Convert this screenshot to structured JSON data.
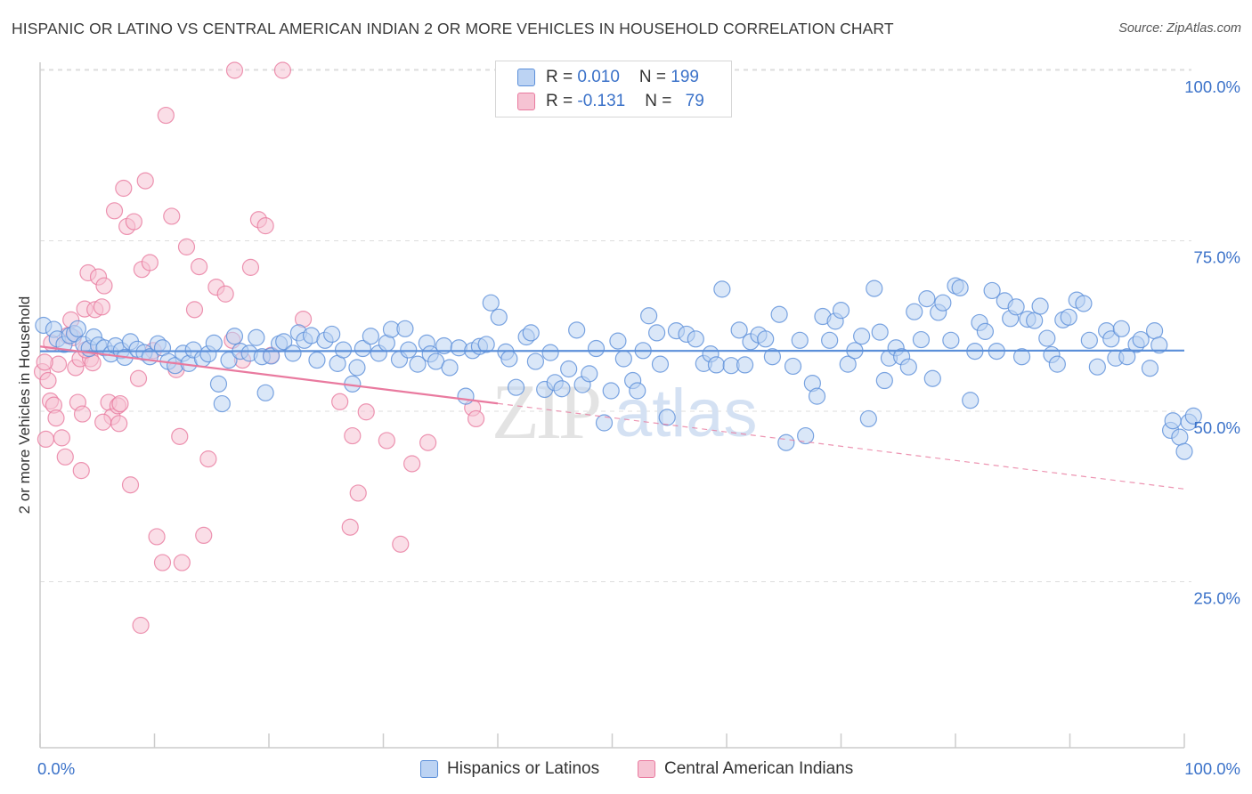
{
  "header": {
    "title": "HISPANIC OR LATINO VS CENTRAL AMERICAN INDIAN 2 OR MORE VEHICLES IN HOUSEHOLD CORRELATION CHART",
    "source": "Source: ZipAtlas.com"
  },
  "legend": {
    "series1": {
      "r_label": "R = ",
      "r_value": "0.010",
      "n_label": "N = ",
      "n_value": "199"
    },
    "series2": {
      "r_label": "R = ",
      "r_value": "-0.131",
      "n_label": "N = ",
      "n_value": "79"
    }
  },
  "watermark": {
    "zip": "ZIP",
    "atlas": "atlas"
  },
  "colors": {
    "blue": "#5b8fd9",
    "blue_fill": "#bcd3f3",
    "pink": "#e97a9f",
    "pink_fill": "#f6c3d3",
    "grid": "#dddddd",
    "tick_label": "#3b72c9"
  },
  "chart_data": {
    "type": "scatter",
    "title": "HISPANIC OR LATINO VS CENTRAL AMERICAN INDIAN 2 OR MORE VEHICLES IN HOUSEHOLD CORRELATION CHART",
    "xlabel": "",
    "ylabel": "2 or more Vehicles in Household",
    "xlim": [
      0,
      100
    ],
    "ylim": [
      0,
      103
    ],
    "x_tick_labels": [
      "0.0%",
      "100.0%"
    ],
    "y_ticks": [
      25,
      50,
      75,
      100
    ],
    "y_tick_labels": [
      "25.0%",
      "50.0%",
      "75.0%",
      "100.0%"
    ],
    "grid": true,
    "series": [
      {
        "name": "Hispanics or Latinos",
        "color": "#5b8fd9",
        "trend": {
          "x0": 0,
          "y0": 58.8,
          "x1": 100,
          "y1": 58.9,
          "solid_to": 100
        },
        "points": [
          [
            0.3,
            62.6
          ],
          [
            1.2,
            62.0
          ],
          [
            1.5,
            60.6
          ],
          [
            2.1,
            59.8
          ],
          [
            2.6,
            61.1
          ],
          [
            3.0,
            61.4
          ],
          [
            3.3,
            62.1
          ],
          [
            3.8,
            59.8
          ],
          [
            4.3,
            59.2
          ],
          [
            4.7,
            60.9
          ],
          [
            5.1,
            59.7
          ],
          [
            5.6,
            59.3
          ],
          [
            6.2,
            58.4
          ],
          [
            6.6,
            59.6
          ],
          [
            7.1,
            58.9
          ],
          [
            7.4,
            57.9
          ],
          [
            7.9,
            60.2
          ],
          [
            8.5,
            59.1
          ],
          [
            9.1,
            58.6
          ],
          [
            9.6,
            58.0
          ],
          [
            10.3,
            59.9
          ],
          [
            10.7,
            59.3
          ],
          [
            11.2,
            57.3
          ],
          [
            11.8,
            56.7
          ],
          [
            12.5,
            58.5
          ],
          [
            13.0,
            57.0
          ],
          [
            13.4,
            59.0
          ],
          [
            14.2,
            57.7
          ],
          [
            14.7,
            58.4
          ],
          [
            15.2,
            60.0
          ],
          [
            15.6,
            54.0
          ],
          [
            15.9,
            51.1
          ],
          [
            16.5,
            57.5
          ],
          [
            17.0,
            61.0
          ],
          [
            17.5,
            58.8
          ],
          [
            18.3,
            58.5
          ],
          [
            18.9,
            60.8
          ],
          [
            19.4,
            58.0
          ],
          [
            19.7,
            52.7
          ],
          [
            20.2,
            58.1
          ],
          [
            20.9,
            59.9
          ],
          [
            21.3,
            60.2
          ],
          [
            22.1,
            58.5
          ],
          [
            22.6,
            61.5
          ],
          [
            23.1,
            60.4
          ],
          [
            23.7,
            61.1
          ],
          [
            24.2,
            57.5
          ],
          [
            24.9,
            60.4
          ],
          [
            25.5,
            61.3
          ],
          [
            26.0,
            57.0
          ],
          [
            26.5,
            59.0
          ],
          [
            27.3,
            54.0
          ],
          [
            27.7,
            56.4
          ],
          [
            28.2,
            59.2
          ],
          [
            28.9,
            61.0
          ],
          [
            29.6,
            58.5
          ],
          [
            30.3,
            60.0
          ],
          [
            30.7,
            62.0
          ],
          [
            31.4,
            57.6
          ],
          [
            31.9,
            62.1
          ],
          [
            32.2,
            59.0
          ],
          [
            33.0,
            56.9
          ],
          [
            33.8,
            60.0
          ],
          [
            34.1,
            58.4
          ],
          [
            34.6,
            57.3
          ],
          [
            35.3,
            59.6
          ],
          [
            35.8,
            56.4
          ],
          [
            36.6,
            59.3
          ],
          [
            37.2,
            52.2
          ],
          [
            37.8,
            58.9
          ],
          [
            38.4,
            59.5
          ],
          [
            39.0,
            59.8
          ],
          [
            39.4,
            65.9
          ],
          [
            40.1,
            63.8
          ],
          [
            40.7,
            58.7
          ],
          [
            41.0,
            57.7
          ],
          [
            41.6,
            53.5
          ],
          [
            42.5,
            60.9
          ],
          [
            42.9,
            61.5
          ],
          [
            43.3,
            57.3
          ],
          [
            44.1,
            53.2
          ],
          [
            44.6,
            58.6
          ],
          [
            45.0,
            54.2
          ],
          [
            45.6,
            53.3
          ],
          [
            46.2,
            56.2
          ],
          [
            46.9,
            61.9
          ],
          [
            47.4,
            53.9
          ],
          [
            48.0,
            55.5
          ],
          [
            48.6,
            59.2
          ],
          [
            49.3,
            48.3
          ],
          [
            49.9,
            53.0
          ],
          [
            50.5,
            60.3
          ],
          [
            51.0,
            57.7
          ],
          [
            51.8,
            54.5
          ],
          [
            52.2,
            53.0
          ],
          [
            52.7,
            58.9
          ],
          [
            53.2,
            64.0
          ],
          [
            53.9,
            61.5
          ],
          [
            54.2,
            56.9
          ],
          [
            54.8,
            49.1
          ],
          [
            55.6,
            61.8
          ],
          [
            56.5,
            61.3
          ],
          [
            57.3,
            60.6
          ],
          [
            58.0,
            57.0
          ],
          [
            58.6,
            58.4
          ],
          [
            59.1,
            56.8
          ],
          [
            59.6,
            67.9
          ],
          [
            60.4,
            56.7
          ],
          [
            61.1,
            61.9
          ],
          [
            61.6,
            56.8
          ],
          [
            62.1,
            60.2
          ],
          [
            62.8,
            61.2
          ],
          [
            63.4,
            60.6
          ],
          [
            64.0,
            58.0
          ],
          [
            64.6,
            64.2
          ],
          [
            65.2,
            45.4
          ],
          [
            65.8,
            56.6
          ],
          [
            66.4,
            60.4
          ],
          [
            66.9,
            46.4
          ],
          [
            67.5,
            54.1
          ],
          [
            67.9,
            52.2
          ],
          [
            68.4,
            63.9
          ],
          [
            69.0,
            60.4
          ],
          [
            69.5,
            63.2
          ],
          [
            70.0,
            64.8
          ],
          [
            70.6,
            56.9
          ],
          [
            71.2,
            58.9
          ],
          [
            71.8,
            61.0
          ],
          [
            72.4,
            48.9
          ],
          [
            72.9,
            68.0
          ],
          [
            73.4,
            61.6
          ],
          [
            73.8,
            54.5
          ],
          [
            74.2,
            57.8
          ],
          [
            74.8,
            59.3
          ],
          [
            75.3,
            58.0
          ],
          [
            75.9,
            56.5
          ],
          [
            76.4,
            64.6
          ],
          [
            77.0,
            60.5
          ],
          [
            77.5,
            66.5
          ],
          [
            78.0,
            54.8
          ],
          [
            78.5,
            64.5
          ],
          [
            78.9,
            65.9
          ],
          [
            79.6,
            60.4
          ],
          [
            80.0,
            68.4
          ],
          [
            80.4,
            68.1
          ],
          [
            81.3,
            51.6
          ],
          [
            81.7,
            58.8
          ],
          [
            82.1,
            63.0
          ],
          [
            82.6,
            61.7
          ],
          [
            83.2,
            67.7
          ],
          [
            83.6,
            58.8
          ],
          [
            84.3,
            66.2
          ],
          [
            84.8,
            63.6
          ],
          [
            85.3,
            65.3
          ],
          [
            85.8,
            58.0
          ],
          [
            86.3,
            63.5
          ],
          [
            86.9,
            63.3
          ],
          [
            87.4,
            65.4
          ],
          [
            88.0,
            60.7
          ],
          [
            88.4,
            58.3
          ],
          [
            88.9,
            56.9
          ],
          [
            89.4,
            63.4
          ],
          [
            89.9,
            63.8
          ],
          [
            90.6,
            66.3
          ],
          [
            91.2,
            65.8
          ],
          [
            91.7,
            60.4
          ],
          [
            92.4,
            56.5
          ],
          [
            93.2,
            61.8
          ],
          [
            93.6,
            60.6
          ],
          [
            94.0,
            57.8
          ],
          [
            94.5,
            62.1
          ],
          [
            95.0,
            58.0
          ],
          [
            95.8,
            59.8
          ],
          [
            96.2,
            60.5
          ],
          [
            97.0,
            56.3
          ],
          [
            97.4,
            61.8
          ],
          [
            97.8,
            59.7
          ],
          [
            98.8,
            47.2
          ],
          [
            99.0,
            48.6
          ],
          [
            99.6,
            46.2
          ],
          [
            100.0,
            44.1
          ],
          [
            100.4,
            48.4
          ],
          [
            100.8,
            49.3
          ]
        ]
      },
      {
        "name": "Central American Indians",
        "color": "#e97a9f",
        "trend": {
          "x0": 0,
          "y0": 59.5,
          "x1": 100,
          "y1": 38.6,
          "solid_to": 40
        },
        "points": [
          [
            0.2,
            55.8
          ],
          [
            0.5,
            45.9
          ],
          [
            0.7,
            54.5
          ],
          [
            0.9,
            51.5
          ],
          [
            1.2,
            50.9
          ],
          [
            1.4,
            49.0
          ],
          [
            1.6,
            56.9
          ],
          [
            1.9,
            46.1
          ],
          [
            2.2,
            43.3
          ],
          [
            2.4,
            61.1
          ],
          [
            2.7,
            63.4
          ],
          [
            3.1,
            56.4
          ],
          [
            3.3,
            51.3
          ],
          [
            3.5,
            57.7
          ],
          [
            3.6,
            41.3
          ],
          [
            3.9,
            65.0
          ],
          [
            4.2,
            70.3
          ],
          [
            4.4,
            57.7
          ],
          [
            4.6,
            57.1
          ],
          [
            4.8,
            64.9
          ],
          [
            5.1,
            69.7
          ],
          [
            5.4,
            65.3
          ],
          [
            5.6,
            68.4
          ],
          [
            6.0,
            51.3
          ],
          [
            6.3,
            49.2
          ],
          [
            6.5,
            79.4
          ],
          [
            6.8,
            50.8
          ],
          [
            7.0,
            51.1
          ],
          [
            7.3,
            82.7
          ],
          [
            7.6,
            77.1
          ],
          [
            7.9,
            39.2
          ],
          [
            8.2,
            77.8
          ],
          [
            8.6,
            54.8
          ],
          [
            8.9,
            70.8
          ],
          [
            9.2,
            83.8
          ],
          [
            9.6,
            71.8
          ],
          [
            10.2,
            31.6
          ],
          [
            10.7,
            27.8
          ],
          [
            11.0,
            93.4
          ],
          [
            11.5,
            78.6
          ],
          [
            11.9,
            56.1
          ],
          [
            12.4,
            27.8
          ],
          [
            12.2,
            46.3
          ],
          [
            12.8,
            74.1
          ],
          [
            13.5,
            64.9
          ],
          [
            13.9,
            71.2
          ],
          [
            14.3,
            31.8
          ],
          [
            14.7,
            43.0
          ],
          [
            15.4,
            68.2
          ],
          [
            16.2,
            67.2
          ],
          [
            16.8,
            60.4
          ],
          [
            17.0,
            100.0
          ],
          [
            17.7,
            57.5
          ],
          [
            18.4,
            71.1
          ],
          [
            19.1,
            78.1
          ],
          [
            19.7,
            77.2
          ],
          [
            20.2,
            58.2
          ],
          [
            21.2,
            100.0
          ],
          [
            23.0,
            63.5
          ],
          [
            26.2,
            51.4
          ],
          [
            27.1,
            33.0
          ],
          [
            27.3,
            46.4
          ],
          [
            27.8,
            38.0
          ],
          [
            28.5,
            49.9
          ],
          [
            30.3,
            45.7
          ],
          [
            31.5,
            30.5
          ],
          [
            32.5,
            42.3
          ],
          [
            33.9,
            45.4
          ],
          [
            37.8,
            50.5
          ],
          [
            38.1,
            48.9
          ],
          [
            4.0,
            59.0
          ],
          [
            5.5,
            48.4
          ],
          [
            8.8,
            18.6
          ],
          [
            1.0,
            60.0
          ],
          [
            2.9,
            60.8
          ],
          [
            6.9,
            48.2
          ],
          [
            0.4,
            57.2
          ],
          [
            9.9,
            58.9
          ],
          [
            3.7,
            49.6
          ]
        ]
      }
    ]
  },
  "bottom_legend": [
    "Hispanics or Latinos",
    "Central American Indians"
  ]
}
